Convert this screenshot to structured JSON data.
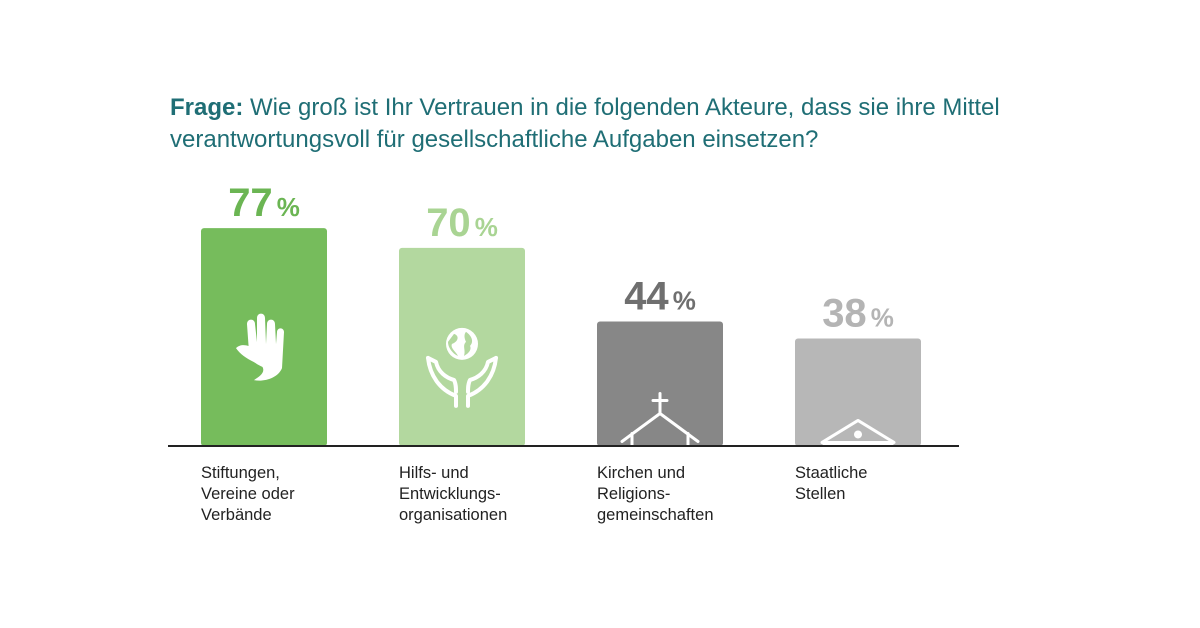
{
  "question": {
    "label": "Frage:",
    "text": "Wie groß ist Ihr Vertrauen in die folgenden Akteure, dass sie ihre Mittel verantwortungsvoll für gesellschaftliche Aufgaben einsetzen?"
  },
  "chart_data": {
    "type": "bar",
    "categories": [
      "Stiftungen,\nVereine oder\nVerbände",
      "Hilfs- und\nEntwicklungs-\norganisationen",
      "Kirchen und\nReligions-\ngemeinschaften",
      "Staatliche\nStellen"
    ],
    "values": [
      77,
      70,
      44,
      38
    ],
    "value_suffix": "%",
    "bar_colors": [
      "#76bc5c",
      "#b3d89f",
      "#878787",
      "#b7b7b7"
    ],
    "value_colors": [
      "#6bb553",
      "#a9d493",
      "#6f6f6f",
      "#b4b4b4"
    ],
    "icons": [
      "helping-hands-icon",
      "globe-in-hands-icon",
      "church-icon",
      "government-building-icon"
    ],
    "ylim": [
      0,
      100
    ],
    "grid": false,
    "xlabel": "",
    "ylabel": ""
  }
}
